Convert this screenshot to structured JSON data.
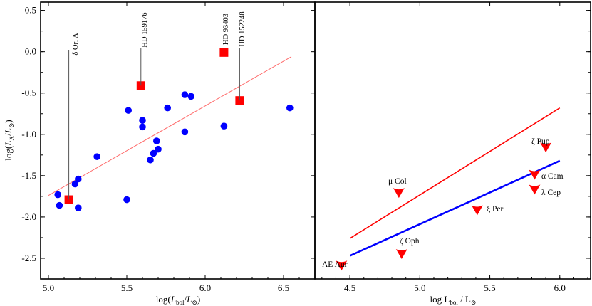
{
  "chart_data": [
    {
      "panel": "left",
      "type": "scatter",
      "xlabel": "log(L_bol/L_⊙)",
      "ylabel": "log(L_X/L_⊙)",
      "xlim": [
        4.95,
        6.7
      ],
      "ylim": [
        -2.75,
        0.6
      ],
      "xticks": [
        "5.0",
        "5.5",
        "6.0",
        "6.5"
      ],
      "yticks": [
        "0.5",
        "0.0",
        "-0.5",
        "-1.0",
        "-1.5",
        "-2.0",
        "-2.5"
      ],
      "grid": false,
      "colors": {
        "circles": "#0000ff",
        "squares": "#ff0000",
        "fit_line": "#ff6b6b",
        "leader": "#555555"
      },
      "circles": [
        {
          "x": 5.06,
          "y": -1.73
        },
        {
          "x": 5.07,
          "y": -1.86
        },
        {
          "x": 5.17,
          "y": -1.6
        },
        {
          "x": 5.19,
          "y": -1.54
        },
        {
          "x": 5.19,
          "y": -1.89
        },
        {
          "x": 5.31,
          "y": -1.27
        },
        {
          "x": 5.5,
          "y": -1.79
        },
        {
          "x": 5.51,
          "y": -0.71
        },
        {
          "x": 5.6,
          "y": -0.83
        },
        {
          "x": 5.6,
          "y": -0.91
        },
        {
          "x": 5.65,
          "y": -1.31
        },
        {
          "x": 5.67,
          "y": -1.23
        },
        {
          "x": 5.69,
          "y": -1.08
        },
        {
          "x": 5.7,
          "y": -1.18
        },
        {
          "x": 5.76,
          "y": -0.68
        },
        {
          "x": 5.87,
          "y": -0.52
        },
        {
          "x": 5.87,
          "y": -0.97
        },
        {
          "x": 5.91,
          "y": -0.54
        },
        {
          "x": 6.12,
          "y": -0.9
        },
        {
          "x": 6.54,
          "y": -0.68
        }
      ],
      "squares": [
        {
          "name": "δ Ori A",
          "x": 5.13,
          "y": -1.79
        },
        {
          "name": "HD 159176",
          "x": 5.59,
          "y": -0.41
        },
        {
          "name": "HD 93403",
          "x": 6.12,
          "y": -0.01
        },
        {
          "name": "HD 152248",
          "x": 6.22,
          "y": -0.59
        }
      ],
      "fit_line": {
        "x": [
          5.0,
          6.55
        ],
        "y": [
          -1.74,
          -0.06
        ]
      },
      "labels": {
        "l1": "δ Ori A",
        "l2": "HD 159176",
        "l3": "HD 93403",
        "l4": "HD 152248"
      }
    },
    {
      "panel": "right",
      "type": "line",
      "xlabel": "log L_bol / L_⊙",
      "ylabel": "",
      "xlim": [
        4.25,
        6.22
      ],
      "ylim": [
        -2.75,
        0.6
      ],
      "xticks": [
        "4.5",
        "5.0",
        "5.5",
        "6.0"
      ],
      "grid": false,
      "colors": {
        "line_red": "#ff0000",
        "line_blue": "#0000ff",
        "markers": "#ff0000"
      },
      "series": [
        {
          "x": [
            4.5,
            6.0
          ],
          "y": [
            -2.26,
            -0.68
          ]
        },
        {
          "x": [
            4.5,
            6.0
          ],
          "y": [
            -2.47,
            -1.32
          ]
        }
      ],
      "stars": [
        {
          "name": "ζ Pup",
          "x": 5.9,
          "y": -1.15
        },
        {
          "name": "α Cam",
          "x": 5.82,
          "y": -1.48
        },
        {
          "name": "λ Cep",
          "x": 5.82,
          "y": -1.66
        },
        {
          "name": "μ Col",
          "x": 4.85,
          "y": -1.7
        },
        {
          "name": "ξ Per",
          "x": 5.41,
          "y": -1.91
        },
        {
          "name": "ζ Oph",
          "x": 4.87,
          "y": -2.44
        },
        {
          "name": "AE Aur",
          "x": 4.44,
          "y": -2.58
        }
      ],
      "labels": {
        "s1": "ζ Pup",
        "s2": "α Cam",
        "s3": "λ Cep",
        "s4": "μ Col",
        "s5": "ξ Per",
        "s6": "ζ Oph",
        "s7": "AE Aur"
      }
    }
  ]
}
